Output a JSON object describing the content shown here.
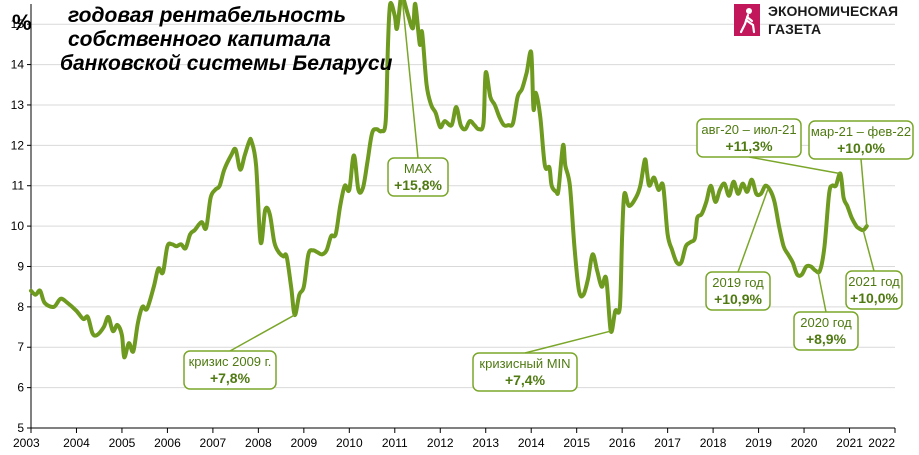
{
  "title_lines": [
    "годовая рентабельность",
    "собственного капитала",
    "банковской системы Беларуси"
  ],
  "unit": "%",
  "brand": {
    "line1": "ЭКОНОМИЧЕСКАЯ",
    "line2": "ГАЗЕТА",
    "logo_color": "#c2185b",
    "logo": "walking-figure-logo"
  },
  "colors": {
    "series": "#6e9a1f",
    "annotation_text": "#4f7a12",
    "annotation_border": "#7aa62a",
    "gridline": "#d9d9d9",
    "axis": "#000000"
  },
  "chart_data": {
    "type": "line",
    "title": "годовая рентабельность собственного капитала банковской системы Беларуси",
    "ylabel": "%",
    "xlabel": "",
    "xlim": [
      2003,
      2022
    ],
    "ylim": [
      5,
      15.5
    ],
    "x_ticks": [
      2003,
      2004,
      2005,
      2006,
      2007,
      2008,
      2009,
      2010,
      2011,
      2012,
      2013,
      2014,
      2015,
      2016,
      2017,
      2018,
      2019,
      2020,
      2021,
      2022
    ],
    "y_ticks": [
      5,
      6,
      7,
      8,
      9,
      10,
      11,
      12,
      13,
      14,
      15
    ],
    "grid": {
      "horizontal": true,
      "vertical": false
    },
    "series": [
      {
        "values": [
          [
            2003.0,
            8.4
          ],
          [
            2003.1,
            8.3
          ],
          [
            2003.2,
            8.4
          ],
          [
            2003.3,
            8.1
          ],
          [
            2003.5,
            8.0
          ],
          [
            2003.65,
            8.2
          ],
          [
            2003.8,
            8.1
          ],
          [
            2004.0,
            7.9
          ],
          [
            2004.15,
            7.7
          ],
          [
            2004.25,
            7.75
          ],
          [
            2004.35,
            7.35
          ],
          [
            2004.45,
            7.3
          ],
          [
            2004.6,
            7.5
          ],
          [
            2004.7,
            7.75
          ],
          [
            2004.8,
            7.4
          ],
          [
            2004.9,
            7.55
          ],
          [
            2005.0,
            7.3
          ],
          [
            2005.05,
            6.75
          ],
          [
            2005.15,
            7.1
          ],
          [
            2005.25,
            6.9
          ],
          [
            2005.35,
            7.6
          ],
          [
            2005.45,
            8.0
          ],
          [
            2005.55,
            7.95
          ],
          [
            2005.7,
            8.5
          ],
          [
            2005.8,
            8.95
          ],
          [
            2005.9,
            8.85
          ],
          [
            2006.0,
            9.5
          ],
          [
            2006.1,
            9.55
          ],
          [
            2006.2,
            9.5
          ],
          [
            2006.3,
            9.55
          ],
          [
            2006.4,
            9.45
          ],
          [
            2006.5,
            9.8
          ],
          [
            2006.6,
            9.9
          ],
          [
            2006.75,
            10.1
          ],
          [
            2006.85,
            9.95
          ],
          [
            2006.95,
            10.7
          ],
          [
            2007.05,
            10.9
          ],
          [
            2007.15,
            11.0
          ],
          [
            2007.25,
            11.4
          ],
          [
            2007.4,
            11.75
          ],
          [
            2007.5,
            11.9
          ],
          [
            2007.6,
            11.4
          ],
          [
            2007.7,
            11.75
          ],
          [
            2007.8,
            12.1
          ],
          [
            2007.85,
            12.1
          ],
          [
            2007.95,
            11.5
          ],
          [
            2008.05,
            9.6
          ],
          [
            2008.15,
            10.4
          ],
          [
            2008.25,
            10.3
          ],
          [
            2008.35,
            9.6
          ],
          [
            2008.45,
            9.35
          ],
          [
            2008.55,
            9.25
          ],
          [
            2008.62,
            9.25
          ],
          [
            2008.72,
            8.5
          ],
          [
            2008.8,
            7.8
          ],
          [
            2008.9,
            8.3
          ],
          [
            2009.0,
            8.5
          ],
          [
            2009.1,
            9.3
          ],
          [
            2009.2,
            9.4
          ],
          [
            2009.3,
            9.35
          ],
          [
            2009.4,
            9.3
          ],
          [
            2009.5,
            9.4
          ],
          [
            2009.6,
            9.75
          ],
          [
            2009.7,
            9.8
          ],
          [
            2009.8,
            10.5
          ],
          [
            2009.9,
            11.0
          ],
          [
            2010.0,
            10.9
          ],
          [
            2010.1,
            11.75
          ],
          [
            2010.2,
            10.9
          ],
          [
            2010.3,
            10.95
          ],
          [
            2010.4,
            11.6
          ],
          [
            2010.5,
            12.3
          ],
          [
            2010.6,
            12.4
          ],
          [
            2010.7,
            12.35
          ],
          [
            2010.8,
            12.6
          ],
          [
            2010.85,
            14.5
          ],
          [
            2010.9,
            15.5
          ],
          [
            2011.0,
            15.2
          ],
          [
            2011.05,
            14.9
          ],
          [
            2011.15,
            15.8
          ],
          [
            2011.2,
            15.6
          ],
          [
            2011.3,
            15.2
          ],
          [
            2011.4,
            14.9
          ],
          [
            2011.45,
            15.5
          ],
          [
            2011.55,
            14.5
          ],
          [
            2011.6,
            14.8
          ],
          [
            2011.7,
            13.5
          ],
          [
            2011.8,
            13.0
          ],
          [
            2011.9,
            12.8
          ],
          [
            2012.0,
            12.45
          ],
          [
            2012.1,
            12.6
          ],
          [
            2012.25,
            12.5
          ],
          [
            2012.35,
            12.95
          ],
          [
            2012.45,
            12.5
          ],
          [
            2012.55,
            12.4
          ],
          [
            2012.65,
            12.6
          ],
          [
            2012.75,
            12.5
          ],
          [
            2012.85,
            12.4
          ],
          [
            2012.95,
            12.55
          ],
          [
            2013.0,
            13.8
          ],
          [
            2013.1,
            13.2
          ],
          [
            2013.2,
            13.0
          ],
          [
            2013.3,
            12.7
          ],
          [
            2013.4,
            12.5
          ],
          [
            2013.5,
            12.5
          ],
          [
            2013.6,
            12.55
          ],
          [
            2013.7,
            13.2
          ],
          [
            2013.8,
            13.4
          ],
          [
            2013.9,
            13.8
          ],
          [
            2014.0,
            14.3
          ],
          [
            2014.05,
            12.9
          ],
          [
            2014.1,
            13.3
          ],
          [
            2014.2,
            12.7
          ],
          [
            2014.3,
            11.5
          ],
          [
            2014.4,
            11.45
          ],
          [
            2014.45,
            11.0
          ],
          [
            2014.55,
            10.85
          ],
          [
            2014.6,
            10.9
          ],
          [
            2014.7,
            12.0
          ],
          [
            2014.75,
            11.5
          ],
          [
            2014.85,
            11.0
          ],
          [
            2014.95,
            9.5
          ],
          [
            2015.05,
            8.4
          ],
          [
            2015.15,
            8.3
          ],
          [
            2015.25,
            8.7
          ],
          [
            2015.35,
            9.3
          ],
          [
            2015.45,
            8.9
          ],
          [
            2015.55,
            8.5
          ],
          [
            2015.65,
            8.7
          ],
          [
            2015.75,
            7.4
          ],
          [
            2015.85,
            7.9
          ],
          [
            2015.95,
            8.0
          ],
          [
            2016.0,
            9.8
          ],
          [
            2016.05,
            10.8
          ],
          [
            2016.15,
            10.5
          ],
          [
            2016.3,
            10.7
          ],
          [
            2016.4,
            11.0
          ],
          [
            2016.5,
            11.65
          ],
          [
            2016.55,
            11.3
          ],
          [
            2016.6,
            11.0
          ],
          [
            2016.7,
            11.2
          ],
          [
            2016.8,
            10.9
          ],
          [
            2016.9,
            11.0
          ],
          [
            2017.0,
            9.8
          ],
          [
            2017.1,
            9.4
          ],
          [
            2017.2,
            9.1
          ],
          [
            2017.3,
            9.1
          ],
          [
            2017.4,
            9.5
          ],
          [
            2017.5,
            9.6
          ],
          [
            2017.6,
            9.7
          ],
          [
            2017.65,
            10.2
          ],
          [
            2017.75,
            10.3
          ],
          [
            2017.85,
            10.6
          ],
          [
            2017.95,
            11.0
          ],
          [
            2018.05,
            10.6
          ],
          [
            2018.15,
            10.9
          ],
          [
            2018.25,
            11.05
          ],
          [
            2018.35,
            10.75
          ],
          [
            2018.45,
            11.1
          ],
          [
            2018.55,
            10.8
          ],
          [
            2018.65,
            11.05
          ],
          [
            2018.75,
            10.85
          ],
          [
            2018.85,
            11.15
          ],
          [
            2018.95,
            10.8
          ],
          [
            2019.05,
            10.8
          ],
          [
            2019.15,
            11.0
          ],
          [
            2019.25,
            10.9
          ],
          [
            2019.35,
            10.6
          ],
          [
            2019.45,
            10.0
          ],
          [
            2019.55,
            9.5
          ],
          [
            2019.65,
            9.3
          ],
          [
            2019.75,
            9.1
          ],
          [
            2019.85,
            8.8
          ],
          [
            2019.95,
            8.8
          ],
          [
            2020.05,
            9.0
          ],
          [
            2020.15,
            9.0
          ],
          [
            2020.25,
            8.9
          ],
          [
            2020.35,
            8.9
          ],
          [
            2020.45,
            9.5
          ],
          [
            2020.55,
            10.8
          ],
          [
            2020.62,
            11.0
          ],
          [
            2020.7,
            11.0
          ],
          [
            2020.8,
            11.3
          ],
          [
            2020.87,
            10.7
          ],
          [
            2020.95,
            10.5
          ],
          [
            2021.0,
            10.35
          ],
          [
            2021.05,
            10.2
          ],
          [
            2021.15,
            10.0
          ],
          [
            2021.2,
            9.95
          ],
          [
            2021.3,
            9.9
          ],
          [
            2021.38,
            10.0
          ]
        ]
      }
    ],
    "annotations": [
      {
        "lines": [
          "кризис 2009 г.",
          "+7,8%"
        ],
        "x": 2008.8,
        "y": 7.8
      },
      {
        "lines": [
          "MAX",
          "+15,8%"
        ],
        "x": 2011.15,
        "y": 15.8
      },
      {
        "lines": [
          "кризисный MIN",
          "+7,4%"
        ],
        "x": 2015.75,
        "y": 7.4
      },
      {
        "lines": [
          "2019 год",
          "+10,9%"
        ],
        "x": 2019.2,
        "y": 10.9
      },
      {
        "lines": [
          "2020 год",
          "+8,9%"
        ],
        "x": 2020.3,
        "y": 8.9
      },
      {
        "lines": [
          "авг-20 – июл-21",
          "+11,3%"
        ],
        "x": 2020.8,
        "y": 11.3
      },
      {
        "lines": [
          "мар-21 – фев-22",
          "+10,0%"
        ],
        "x": 2021.38,
        "y": 10.0
      },
      {
        "lines": [
          "2021 год",
          "+10,0%"
        ],
        "x": 2021.3,
        "y": 9.9
      }
    ]
  }
}
